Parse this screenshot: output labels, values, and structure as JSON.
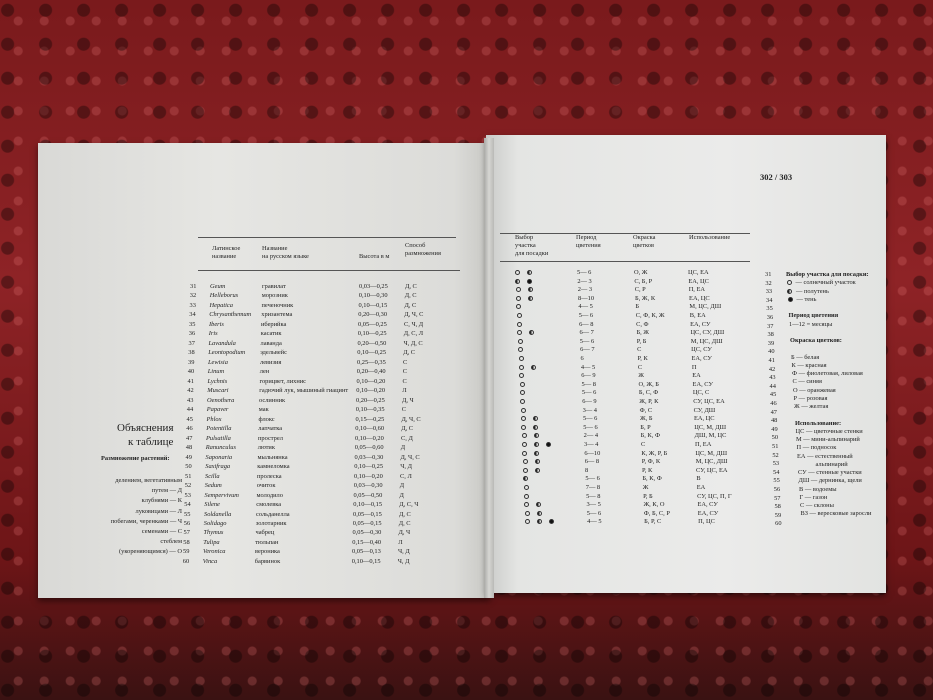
{
  "left_page": {
    "title_line1": "Объяснения",
    "title_line2": "к таблице",
    "propagation_heading": "Размножение растений:",
    "propagation_lines": [
      "делением, вегетативным",
      "путем — Д",
      "клубнями — К",
      "луковицами — Л",
      "побегами, черенками — Ч",
      "семенами — С",
      "стеблем",
      "(укореняющимся) — О"
    ],
    "table_headers": {
      "latin": [
        "Латинское",
        "название"
      ],
      "russian": [
        "Название",
        "на русском языке"
      ],
      "height": "Высота в м",
      "method": [
        "Способ",
        "размножения"
      ]
    },
    "rows": [
      [
        "31",
        "Geum",
        "гравилат",
        "0,03—0,25",
        "Д, С"
      ],
      [
        "32",
        "Helleborus",
        "морозник",
        "0,10—0,30",
        "Д, С"
      ],
      [
        "33",
        "Hepatica",
        "печеночник",
        "0,10—0,15",
        "Д, С"
      ],
      [
        "34",
        "Chrysanthemum",
        "хризантема",
        "0,20—0,30",
        "Д, Ч, С"
      ],
      [
        "35",
        "Iberis",
        "иберийка",
        "0,05—0,25",
        "С, Ч, Д"
      ],
      [
        "36",
        "Iris",
        "касатик",
        "0,10—0,25",
        "Д, С, Л"
      ],
      [
        "37",
        "Lavandula",
        "лаванда",
        "0,20—0,50",
        "Ч, Д, С"
      ],
      [
        "38",
        "Leontopodium",
        "эдельвейс",
        "0,10—0,25",
        "Д, С"
      ],
      [
        "39",
        "Lewisia",
        "левизия",
        "0,25—0,35",
        "С"
      ],
      [
        "40",
        "Linum",
        "лен",
        "0,20—0,40",
        "С"
      ],
      [
        "41",
        "Lychnis",
        "горицвет, лихнис",
        "0,10—0,20",
        "С"
      ],
      [
        "42",
        "Muscari",
        "гадючий лук, мышиный гиацинт",
        "0,10—0,20",
        "Л"
      ],
      [
        "43",
        "Oenothera",
        "ослинник",
        "0,20—0,25",
        "Д, Ч"
      ],
      [
        "44",
        "Papaver",
        "мак",
        "0,10—0,35",
        "С"
      ],
      [
        "45",
        "Phlox",
        "флокс",
        "0,15—0,25",
        "Д, Ч, С"
      ],
      [
        "46",
        "Potentilla",
        "лапчатка",
        "0,10—0,60",
        "Д, С"
      ],
      [
        "47",
        "Pulsatilla",
        "прострел",
        "0,10—0,20",
        "С, Д"
      ],
      [
        "48",
        "Ranunculus",
        "лютик",
        "0,05—0,60",
        "Д"
      ],
      [
        "49",
        "Saponaria",
        "мыльнянка",
        "0,03—0,30",
        "Д, Ч, С"
      ],
      [
        "50",
        "Saxifraga",
        "камнеломка",
        "0,10—0,25",
        "Ч, Д"
      ],
      [
        "51",
        "Scilla",
        "пролеска",
        "0,10—0,20",
        "С, Л"
      ],
      [
        "52",
        "Sedum",
        "очиток",
        "0,03—0,30",
        "Д"
      ],
      [
        "53",
        "Sempervivum",
        "молодило",
        "0,05—0,50",
        "Д"
      ],
      [
        "54",
        "Silene",
        "смолевка",
        "0,10—0,15",
        "Д, С, Ч"
      ],
      [
        "55",
        "Soldanella",
        "сольданелла",
        "0,05—0,15",
        "Д, С"
      ],
      [
        "56",
        "Solidago",
        "золотарник",
        "0,05—0,15",
        "Д, С"
      ],
      [
        "57",
        "Thymus",
        "чабрец",
        "0,05—0,30",
        "Д, Ч"
      ],
      [
        "58",
        "Tulipa",
        "тюльпан",
        "0,15—0,40",
        "Л"
      ],
      [
        "59",
        "Veronica",
        "вероника",
        "0,05—0,13",
        "Ч, Д"
      ],
      [
        "60",
        "Vinca",
        "барвинок",
        "0,10—0,15",
        "Ч, Д"
      ]
    ]
  },
  "right_page": {
    "page_number": "302 / 303",
    "table_headers": {
      "site": [
        "Выбор",
        "участка",
        "для посадки"
      ],
      "period": [
        "Период",
        "цветения"
      ],
      "color": [
        "Окраска",
        "цветков"
      ],
      "usage": "Использование"
    },
    "rows": [
      [
        [
          "sun",
          "half"
        ],
        "5— 6",
        "О, Ж",
        "ЦС, ЕА"
      ],
      [
        [
          "half",
          "shade"
        ],
        "2— 3",
        "С, Б, Р",
        "ЕА, ЦС"
      ],
      [
        [
          "sun",
          "half"
        ],
        "2— 3",
        "С, Р",
        "П, ЕА"
      ],
      [
        [
          "sun",
          "half"
        ],
        "8—10",
        "Б, Ж, К",
        "ЕА, ЦС"
      ],
      [
        [
          "sun"
        ],
        "4— 5",
        "Б",
        "М, ЦС, ДШ"
      ],
      [
        [
          "sun"
        ],
        "5— 6",
        "С, Ф, К, Ж",
        "В, ЕА"
      ],
      [
        [
          "sun"
        ],
        "6— 8",
        "С, Ф",
        "ЕА, СУ"
      ],
      [
        [
          "sun",
          "half"
        ],
        "6— 7",
        "Б, Ж",
        "ЦС, СУ, ДШ"
      ],
      [
        [
          "sun"
        ],
        "5— 6",
        "Р, Б",
        "М, ЦС, ДШ"
      ],
      [
        [
          "sun"
        ],
        "6— 7",
        "С",
        "ЦС, СУ"
      ],
      [
        [
          "sun"
        ],
        "6",
        "Р, К",
        "ЕА, СУ"
      ],
      [
        [
          "sun",
          "half"
        ],
        "4— 5",
        "С",
        "П"
      ],
      [
        [
          "sun"
        ],
        "6— 9",
        "Ж",
        "ЕА"
      ],
      [
        [
          "sun"
        ],
        "5— 8",
        "О, Ж, Б",
        "ЕА, СУ"
      ],
      [
        [
          "sun"
        ],
        "5— 6",
        "Б, С, Ф",
        "ЦС, С"
      ],
      [
        [
          "sun"
        ],
        "6— 9",
        "Ж, Р, К",
        "СУ, ЦС, ЕА"
      ],
      [
        [
          "sun"
        ],
        "3— 4",
        "Ф, С",
        "СУ, ДШ"
      ],
      [
        [
          "sun",
          "half"
        ],
        "5— 6",
        "Ж, Б",
        "ЕА, ЦС"
      ],
      [
        [
          "sun",
          "half"
        ],
        "5— 6",
        "Б, Р",
        "ЦС, М, ДШ"
      ],
      [
        [
          "sun",
          "half"
        ],
        "2— 4",
        "Б, К, Ф",
        "ДШ, М, ЦС"
      ],
      [
        [
          "sun",
          "half",
          "shade"
        ],
        "3— 4",
        "С",
        "П, ЕА"
      ],
      [
        [
          "sun",
          "half"
        ],
        "6—10",
        "К, Ж, Р, Б",
        "ЦС, М, ДШ"
      ],
      [
        [
          "sun",
          "half"
        ],
        "6— 8",
        "Р, Ф, К",
        "М, ЦС, ДШ"
      ],
      [
        [
          "sun",
          "half"
        ],
        "8",
        "Р, К",
        "СУ, ЦС, ЕА"
      ],
      [
        [
          "half"
        ],
        "5— 6",
        "Б, К, Ф",
        "В"
      ],
      [
        [
          "sun"
        ],
        "7— 8",
        "Ж",
        "ЕА"
      ],
      [
        [
          "sun"
        ],
        "5— 8",
        "Р, Б",
        "СУ, ЦС, П, Г"
      ],
      [
        [
          "sun",
          "half"
        ],
        "3— 5",
        "Ж, К, О",
        "ЕА, СУ"
      ],
      [
        [
          "sun",
          "half"
        ],
        "5— 6",
        "Ф, Б, С, Р",
        "ЕА, СУ"
      ],
      [
        [
          "sun",
          "half",
          "shade"
        ],
        "4— 5",
        "Б, Р, С",
        "П, ЦС"
      ]
    ],
    "row_numbers": [
      "31",
      "32",
      "33",
      "34",
      "35",
      "36",
      "37",
      "38",
      "39",
      "40",
      "41",
      "42",
      "43",
      "44",
      "45",
      "46",
      "47",
      "48",
      "49",
      "50",
      "51",
      "52",
      "53",
      "54",
      "55",
      "56",
      "57",
      "58",
      "59",
      "60"
    ],
    "legend": [
      {
        "row": 0,
        "text": "Выбор участка для посадки:",
        "bold": true
      },
      {
        "row": 1,
        "icon": "sun",
        "text": "— солнечный участок"
      },
      {
        "row": 2,
        "icon": "half",
        "text": "— полутень"
      },
      {
        "row": 3,
        "icon": "shade",
        "text": "— тень"
      },
      {
        "row": 5,
        "text": "Период цветения",
        "bold": true
      },
      {
        "row": 6,
        "text": "1—12 = месяцы"
      },
      {
        "row": 8,
        "text": "Окраска цветков:",
        "bold": true
      },
      {
        "row": 10,
        "text": "Б  — белая"
      },
      {
        "row": 11,
        "text": "К  — красная"
      },
      {
        "row": 12,
        "text": "Ф  — фиолетовая, лиловая"
      },
      {
        "row": 13,
        "text": "С  — синяя"
      },
      {
        "row": 14,
        "text": "О  — оранжевая"
      },
      {
        "row": 15,
        "text": "Р  — розовая"
      },
      {
        "row": 16,
        "text": "Ж  — желтая"
      },
      {
        "row": 18,
        "text": "Использование:",
        "bold": true
      },
      {
        "row": 19,
        "text": "ЦС  — цветочные стенки"
      },
      {
        "row": 20,
        "text": "М  — мини-альпинарий"
      },
      {
        "row": 21,
        "text": "П  — подносок"
      },
      {
        "row": 22,
        "text": "ЕА  — естественный"
      },
      {
        "row": 23,
        "text": "альпинарий"
      },
      {
        "row": 24,
        "text": "СУ  — стенные участки"
      },
      {
        "row": 25,
        "text": "ДШ  — дернинка, щели"
      },
      {
        "row": 26,
        "text": "В  — водоемы"
      },
      {
        "row": 27,
        "text": "Г  — газон"
      },
      {
        "row": 28,
        "text": "С  — склоны"
      },
      {
        "row": 29,
        "text": "ВЗ  — вересковые заросли"
      }
    ]
  }
}
